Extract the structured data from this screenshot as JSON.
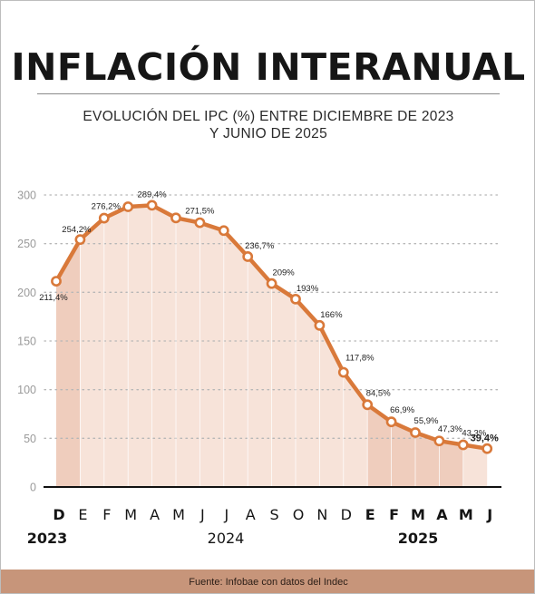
{
  "title": "INFLACIÓN INTERANUAL",
  "subtitle_line1": "EVOLUCIÓN DEL IPC (%) ENTRE DICIEMBRE DE 2023",
  "subtitle_line2": "Y JUNIO DE 2025",
  "footer": "Fuente: Infobae con datos del Indec",
  "colors": {
    "line": "#d9793a",
    "area_fill": "#f7e3d9",
    "highlight_fill": "#efcdbd",
    "footer_bg": "#c7957a"
  },
  "chart_data": {
    "type": "line",
    "categories": [
      "D",
      "E",
      "F",
      "M",
      "A",
      "M",
      "J",
      "J",
      "A",
      "S",
      "O",
      "N",
      "D",
      "E",
      "F",
      "M",
      "A",
      "M",
      "J"
    ],
    "bold_categories": [
      0,
      13,
      14,
      15,
      16,
      17,
      18
    ],
    "values": [
      211.4,
      254.2,
      276.2,
      287.9,
      289.4,
      276.4,
      271.5,
      263.4,
      236.7,
      209,
      193,
      166,
      117.8,
      84.5,
      66.9,
      55.9,
      47.3,
      43.3,
      39.4
    ],
    "data_labels": [
      "211,4%",
      "254,2%",
      "276,2%",
      "",
      "289,4%",
      "",
      "271,5%",
      "",
      "236,7%",
      "209%",
      "193%",
      "166%",
      "117,8%",
      "84,5%",
      "66,9%",
      "55,9%",
      "47,3%",
      "43,3%",
      "39,4%"
    ],
    "ylim": [
      0,
      300
    ],
    "yticks": [
      0,
      50,
      100,
      150,
      200,
      250,
      300
    ],
    "grid": true,
    "highlighted_spans": [
      [
        0,
        1
      ],
      [
        13,
        17
      ]
    ],
    "year_labels": [
      {
        "text": "2023",
        "bold": true
      },
      {
        "text": "2024",
        "bold": false
      },
      {
        "text": "2025",
        "bold": true
      }
    ]
  }
}
